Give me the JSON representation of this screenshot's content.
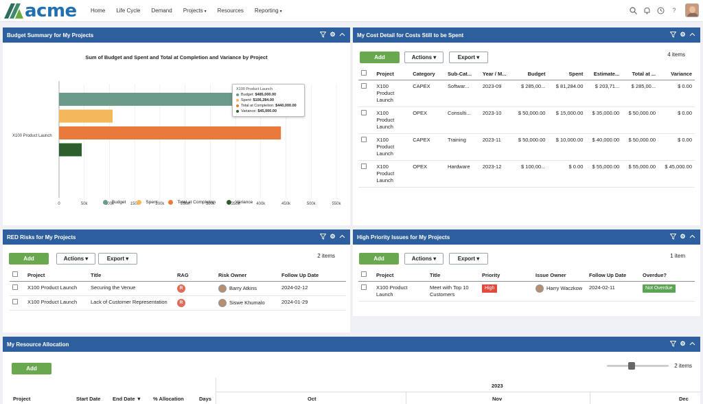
{
  "nav": {
    "logo_text": "acme",
    "items": [
      {
        "label": "Home",
        "has_caret": false
      },
      {
        "label": "Life Cycle",
        "has_caret": false
      },
      {
        "label": "Demand",
        "has_caret": false
      },
      {
        "label": "Projects",
        "has_caret": true
      },
      {
        "label": "Resources",
        "has_caret": false
      },
      {
        "label": "Reporting",
        "has_caret": true
      }
    ],
    "icons": [
      "search-icon",
      "bell-icon",
      "clock-icon",
      "help-icon",
      "user-avatar"
    ]
  },
  "budget_panel": {
    "title": "Budget Summary for My Projects",
    "chart_title": "Sum of Budget and Spent and Total at Completion and Variance by Project",
    "tooltip": {
      "project": "X100 Product Launch",
      "lines": [
        {
          "label": "Budget:",
          "value": "$485,000.00",
          "color": "#6a9c89"
        },
        {
          "label": "Spent:",
          "value": "$106,284.00",
          "color": "#f2b85b"
        },
        {
          "label": "Total at Completion:",
          "value": "$440,000.00",
          "color": "#ea7a3b"
        },
        {
          "label": "Variance:",
          "value": "$45,000.00",
          "color": "#2e5e2b"
        }
      ]
    }
  },
  "chart_data": {
    "type": "bar",
    "orientation": "horizontal",
    "title": "Sum of Budget and Spent and Total at Completion and Variance by Project",
    "categories": [
      "X100 Product Launch"
    ],
    "series": [
      {
        "name": "Budget",
        "values": [
          485000
        ],
        "color": "#6a9c89"
      },
      {
        "name": "Spent",
        "values": [
          106284
        ],
        "color": "#f2b85b"
      },
      {
        "name": "Total at Completion",
        "values": [
          440000
        ],
        "color": "#ea7a3b"
      },
      {
        "name": "Variance",
        "values": [
          45000
        ],
        "color": "#2e5e2b"
      }
    ],
    "xlim": [
      0,
      550000
    ],
    "x_ticks": [
      "0",
      "50k",
      "100k",
      "150k",
      "200k",
      "250k",
      "300k",
      "350k",
      "400k",
      "450k",
      "500k",
      "550k"
    ],
    "grid": true,
    "legend": "bottom"
  },
  "cost_panel": {
    "title": "My Cost Detail for Costs Still to be Spent",
    "add_label": "Add",
    "actions_label": "Actions",
    "export_label": "Export",
    "items_count": "4 items",
    "columns": [
      "Project",
      "Category",
      "Sub-Cat...",
      "Year / M...",
      "Budget",
      "Spent",
      "Estimate...",
      "Total at ...",
      "Variance"
    ],
    "rows": [
      [
        "X100 Product Launch",
        "CAPEX",
        "Softwar...",
        "2023-09",
        "$ 285,00...",
        "$ 81,284.00",
        "$ 203,71...",
        "$ 285,00...",
        "$ 0.00"
      ],
      [
        "X100 Product Launch",
        "OPEX",
        "Consulti...",
        "2023-10",
        "$ 50,000.00",
        "$ 15,000.00",
        "$ 35,000.00",
        "$ 50,000.00",
        "$ 0.00"
      ],
      [
        "X100 Product Launch",
        "CAPEX",
        "Training",
        "2023-11",
        "$ 50,000.00",
        "$ 10,000.00",
        "$ 40,000.00",
        "$ 50,000.00",
        "$ 0.00"
      ],
      [
        "X100 Product Launch",
        "OPEX",
        "Hardware",
        "2023-12",
        "$ 100,00...",
        "$ 0.00",
        "$ 55,000.00",
        "$ 55,000.00",
        "$ 45,000.00"
      ]
    ]
  },
  "risks_panel": {
    "title": "RED Risks for My Projects",
    "add_label": "Add",
    "actions_label": "Actions",
    "export_label": "Export",
    "items_count": "2 items",
    "columns": [
      "Project",
      "Title",
      "RAG",
      "Risk Owner",
      "Follow Up Date"
    ],
    "rows": [
      {
        "project": "X100 Product Launch",
        "title": "Securing the Venue",
        "rag": "R",
        "owner": "Barry Atkins",
        "date": "2024-02-12"
      },
      {
        "project": "X100 Product Launch",
        "title": "Lack of Customer Representation",
        "rag": "R",
        "owner": "Siswe Khumalo",
        "date": "2024-01-29"
      }
    ]
  },
  "issues_panel": {
    "title": "High Priority Issues for My Projects",
    "add_label": "Add",
    "actions_label": "Actions",
    "export_label": "Export",
    "items_count": "1 item",
    "columns": [
      "Project",
      "Title",
      "Priority",
      "Issue Owner",
      "Follow Up Date",
      "Overdue?"
    ],
    "rows": [
      {
        "project": "X100 Product Launch",
        "title": "Meet with Top 10 Customers",
        "priority": "High",
        "owner": "Harry Waczkow",
        "date": "2024-02-11",
        "overdue": "Not Overdue"
      }
    ]
  },
  "resource_panel": {
    "title": "My Resource Allocation",
    "add_label": "Add",
    "items_count": "2 items",
    "columns": [
      "Project",
      "Start Date",
      "End Date",
      "% Allocation",
      "Days"
    ],
    "sort_indicator": "▼",
    "year": "2023",
    "months": [
      "Oct",
      "Nov",
      "Dec"
    ]
  }
}
